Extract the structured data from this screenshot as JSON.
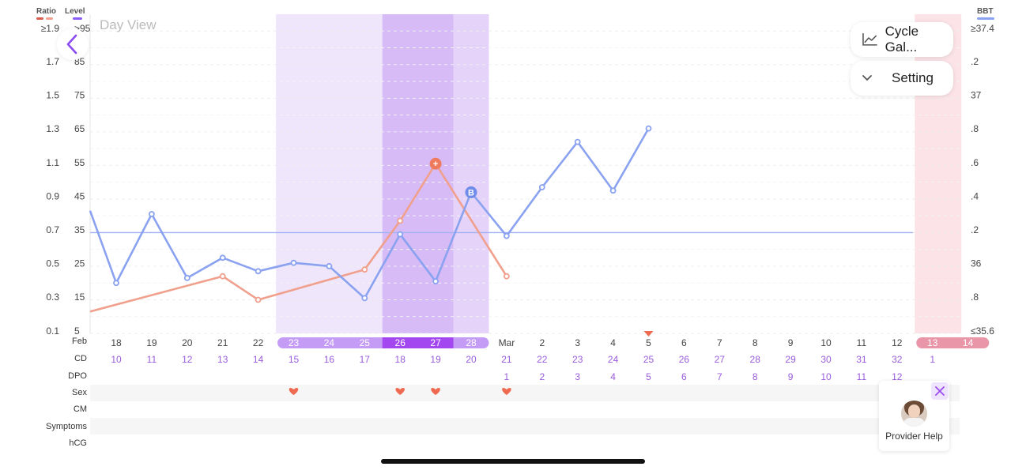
{
  "legend": {
    "ratio_label": "Ratio",
    "level_label": "Level",
    "bbt_label": "BBT",
    "ratio_color": "#e05a4a",
    "level_color": "#8a5cf6",
    "bbt_color": "#8aa2f0"
  },
  "header": {
    "day_view_label": "Day View",
    "cycle_gallery_label": "Cycle Gal...",
    "setting_label": "Setting"
  },
  "chart_data": {
    "type": "line",
    "y_left_ratio_ticks": [
      "≥1.9",
      "1.7",
      "1.5",
      "1.3",
      "1.1",
      "0.9",
      "0.7",
      "0.5",
      "0.3",
      "0.1"
    ],
    "y_left_level_ticks": [
      ">95",
      "85",
      "75",
      "65",
      "55",
      "45",
      "35",
      "25",
      "15",
      "5"
    ],
    "y_right_bbt_ticks": [
      "≥37.4",
      ".2",
      "37",
      ".8",
      ".6",
      ".4",
      ".2",
      "36",
      ".8",
      "≤35.6"
    ],
    "ratio_ylim": [
      0.1,
      1.9
    ],
    "x_dates": [
      "Feb",
      "18",
      "19",
      "20",
      "21",
      "22",
      "23",
      "24",
      "25",
      "26",
      "27",
      "28",
      "Mar",
      "2",
      "3",
      "4",
      "5",
      "6",
      "7",
      "8",
      "9",
      "10",
      "11",
      "12",
      "13",
      "14"
    ],
    "highlight_fertile_window": [
      "23",
      "28"
    ],
    "highlight_peak": [
      "26",
      "27"
    ],
    "highlight_period": [
      "13",
      "14"
    ],
    "series": [
      {
        "name": "Ratio",
        "color": "#f0a08c",
        "x": [
          "17",
          "21",
          "22",
          "25",
          "26",
          "27",
          "Mar"
        ],
        "values": [
          0.23,
          0.44,
          0.3,
          0.48,
          0.77,
          1.11,
          0.44
        ]
      },
      {
        "name": "BBT",
        "color": "#8aa2f0",
        "x": [
          "17",
          "18",
          "19",
          "20",
          "21",
          "22",
          "23",
          "24",
          "25",
          "26",
          "27",
          "28",
          "Mar",
          "2",
          "3",
          "4",
          "5"
        ],
        "values": [
          36.33,
          35.9,
          36.31,
          35.93,
          36.05,
          35.97,
          36.02,
          36.0,
          35.81,
          36.19,
          35.91,
          36.44,
          36.18,
          36.47,
          36.74,
          36.45,
          36.82
        ]
      }
    ],
    "bbt_coverline": 36.2,
    "annotations": [
      {
        "label": "+",
        "x": "27",
        "series": "Ratio"
      },
      {
        "label": "B",
        "x": "28",
        "series": "BBT"
      }
    ]
  },
  "rows": {
    "labels": {
      "date": "Feb",
      "cd": "CD",
      "dpo": "DPO",
      "sex": "Sex",
      "cm": "CM",
      "symptoms": "Symptoms",
      "hcg": "hCG"
    },
    "dates": [
      "18",
      "19",
      "20",
      "21",
      "22",
      "23",
      "24",
      "25",
      "26",
      "27",
      "28",
      "Mar",
      "2",
      "3",
      "4",
      "5",
      "6",
      "7",
      "8",
      "9",
      "10",
      "11",
      "12",
      "13",
      "14"
    ],
    "cd": [
      "10",
      "11",
      "12",
      "13",
      "14",
      "15",
      "16",
      "17",
      "18",
      "19",
      "20",
      "21",
      "22",
      "23",
      "24",
      "25",
      "26",
      "27",
      "28",
      "29",
      "30",
      "31",
      "32",
      "1",
      ""
    ],
    "dpo": [
      "",
      "",
      "",
      "",
      "",
      "",
      "",
      "",
      "",
      "",
      "",
      "1",
      "2",
      "3",
      "4",
      "5",
      "6",
      "7",
      "8",
      "9",
      "10",
      "11",
      "12",
      "",
      ""
    ],
    "sex": [
      false,
      false,
      false,
      false,
      false,
      true,
      false,
      false,
      true,
      true,
      false,
      true,
      false,
      false,
      false,
      false,
      false,
      false,
      false,
      false,
      false,
      false,
      false,
      false,
      false
    ]
  },
  "provider": {
    "label": "Provider Help"
  },
  "icons": {
    "back": "chevron-left-icon",
    "cycle_gallery": "line-chart-icon",
    "setting": "chevron-down-icon",
    "close": "close-icon",
    "today_marker": "triangle-down-icon",
    "sex": "heart-icon"
  }
}
